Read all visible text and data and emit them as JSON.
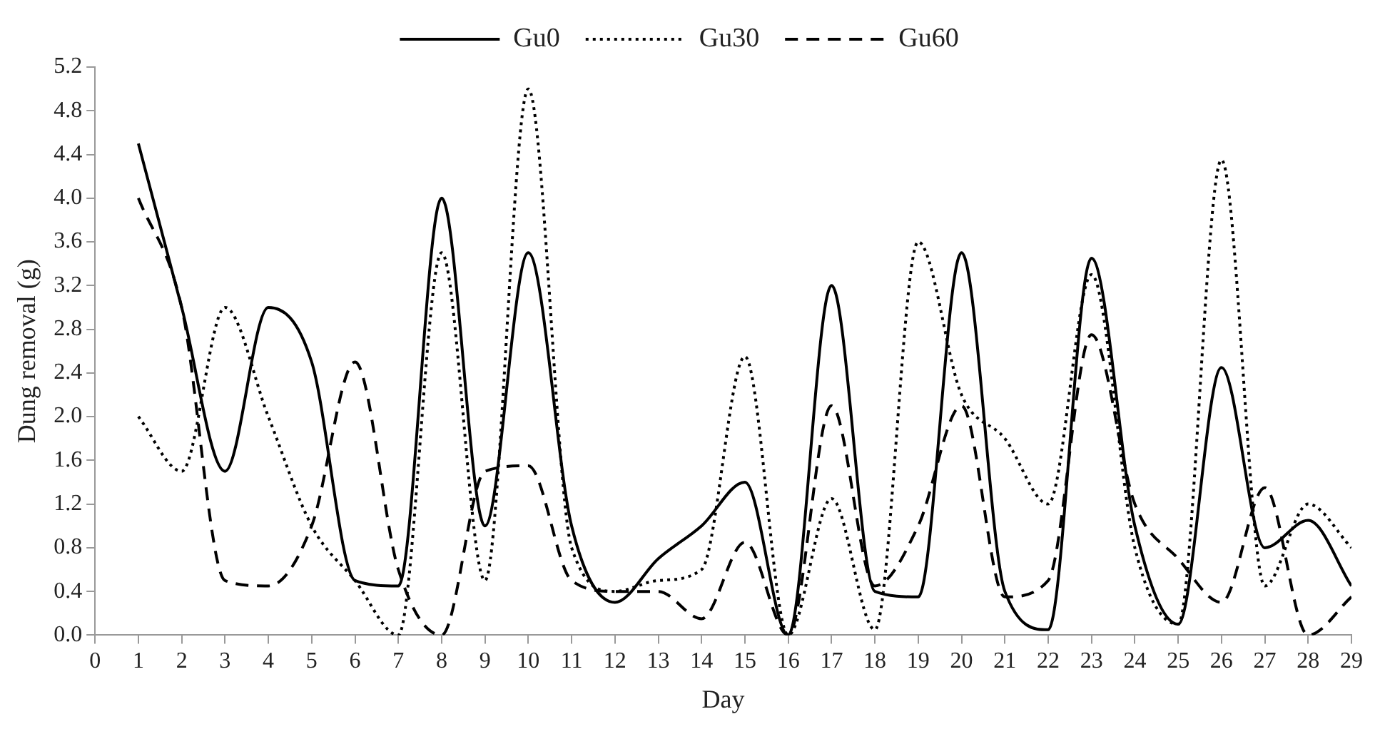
{
  "chart_data": {
    "type": "line",
    "xlabel": "Day",
    "ylabel": "Dung removal (g)",
    "x": [
      1,
      2,
      3,
      4,
      5,
      6,
      7,
      8,
      9,
      10,
      11,
      12,
      13,
      14,
      15,
      16,
      17,
      18,
      19,
      20,
      21,
      22,
      23,
      24,
      25,
      26,
      27,
      28,
      29
    ],
    "series": [
      {
        "name": "Gu0",
        "color": "#000000",
        "line_style": "solid",
        "values": [
          4.5,
          3.0,
          1.5,
          3.0,
          2.5,
          0.5,
          0.45,
          4.0,
          1.0,
          3.5,
          1.0,
          0.3,
          0.7,
          1.0,
          1.4,
          0.0,
          3.2,
          0.4,
          0.35,
          3.5,
          0.4,
          0.05,
          3.45,
          1.0,
          0.1,
          2.45,
          0.8,
          1.05,
          0.45
        ]
      },
      {
        "name": "Gu30",
        "color": "#000000",
        "line_style": "dotted",
        "values": [
          2.0,
          1.5,
          3.0,
          2.0,
          1.0,
          0.5,
          0.0,
          3.5,
          0.5,
          5.0,
          0.8,
          0.4,
          0.5,
          0.6,
          2.55,
          0.0,
          1.25,
          0.05,
          3.6,
          2.2,
          1.8,
          1.2,
          3.3,
          0.8,
          0.1,
          4.35,
          0.45,
          1.2,
          0.8
        ]
      },
      {
        "name": "Gu60",
        "color": "#000000",
        "line_style": "dashed",
        "values": [
          4.0,
          3.0,
          0.5,
          0.45,
          1.0,
          2.5,
          0.6,
          0.0,
          1.5,
          1.55,
          0.5,
          0.4,
          0.4,
          0.15,
          0.85,
          0.0,
          2.1,
          0.45,
          1.0,
          2.1,
          0.35,
          0.5,
          2.75,
          1.2,
          0.7,
          0.3,
          1.35,
          0.0,
          0.35
        ]
      }
    ],
    "xlim": [
      0,
      29
    ],
    "xticks": [
      0,
      1,
      2,
      3,
      4,
      5,
      6,
      7,
      8,
      9,
      10,
      11,
      12,
      13,
      14,
      15,
      16,
      17,
      18,
      19,
      20,
      21,
      22,
      23,
      24,
      25,
      26,
      27,
      28,
      29
    ],
    "ylim": [
      0,
      5.2
    ],
    "yticks": [
      {
        "value": 0,
        "label": "0.0"
      },
      {
        "value": 0.4,
        "label": "0.4"
      },
      {
        "value": 0.8,
        "label": "0.8"
      },
      {
        "value": 1.2,
        "label": "1.2"
      },
      {
        "value": 1.6,
        "label": "1.6"
      },
      {
        "value": 2,
        "label": "2.0"
      },
      {
        "value": 2.4,
        "label": "2.4"
      },
      {
        "value": 2.8,
        "label": "2.8"
      },
      {
        "value": 3.2,
        "label": "3.2"
      },
      {
        "value": 3.6,
        "label": "3.6"
      },
      {
        "value": 4,
        "label": "4.0"
      },
      {
        "value": 4.4,
        "label": "4.4"
      },
      {
        "value": 4.8,
        "label": "4.8"
      },
      {
        "value": 5.2,
        "label": "5.2"
      }
    ],
    "grid": false,
    "legend": "top",
    "marker": "none"
  }
}
